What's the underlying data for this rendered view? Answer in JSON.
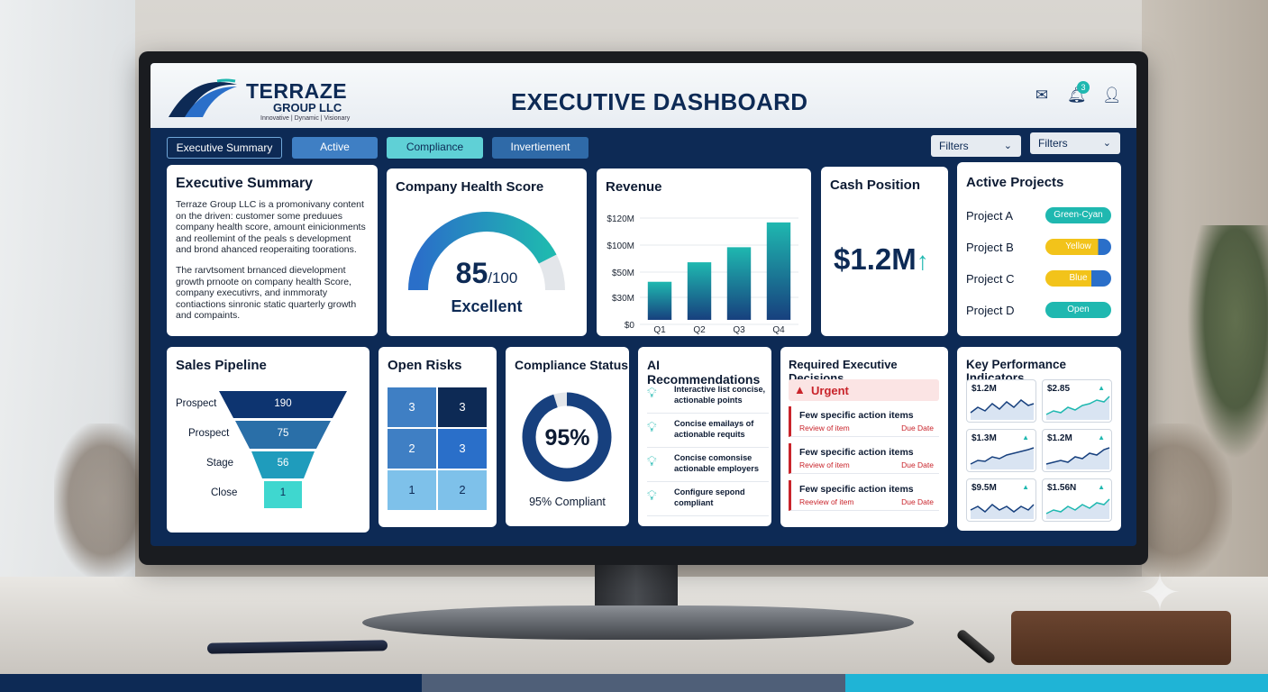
{
  "brand": {
    "name": "TERRAZE",
    "sub": "GROUP LLC",
    "tagline": "Innovative | Dynamic | Visionary"
  },
  "header": {
    "title": "EXECUTIVE DASHBOARD",
    "notification_count": "3"
  },
  "tabs": [
    {
      "label": "Executive Summary"
    },
    {
      "label": "Active"
    },
    {
      "label": "Compliance"
    },
    {
      "label": "Invertiement"
    }
  ],
  "filters": [
    {
      "label": "Filters"
    },
    {
      "label": "Filters"
    }
  ],
  "summary": {
    "title": "Executive Summary",
    "para1": "Terraze Group LLC is a promonivany content on the driven: customer some preduues company health score, amount einicionments and reollemint of the peals s development and brond ahanced reoperaiting toorations.",
    "para2": "The rarvtsoment brnanced dievelopment growth prnoote on company health Score, company executivrs, and inmmoraty contiactions sinronic static quarterly growth and compaints."
  },
  "health": {
    "title": "Company Health Score",
    "score": "85",
    "max": "/100",
    "score_value": 85,
    "rating": "Excellent"
  },
  "revenue": {
    "title": "Revenue"
  },
  "chart_data": {
    "type": "bar",
    "title": "Revenue",
    "categories": [
      "Q1",
      "Q2",
      "Q3",
      "Q4"
    ],
    "values": [
      43,
      65,
      82,
      110
    ],
    "y_ticks": [
      "$0",
      "$30M",
      "$50M",
      "$100M",
      "$120M"
    ],
    "ylim": [
      0,
      120
    ]
  },
  "cash": {
    "title": "Cash Position",
    "value": "$1.2M",
    "trend": "↑"
  },
  "projects": {
    "title": "Active Projects",
    "items": [
      {
        "name": "Project A",
        "status": "Green-Cyan",
        "color": "#1fb8b0",
        "fill": 1.0
      },
      {
        "name": "Project B",
        "status": "Yellow",
        "color": "#2a6fc9",
        "fill": 0.2
      },
      {
        "name": "Project C",
        "status": "Blue",
        "color": "#2a6fc9",
        "fill": 0.3
      },
      {
        "name": "Project D",
        "status": "Open",
        "color": "#1fb8b0",
        "fill": 1.0
      }
    ]
  },
  "pipeline": {
    "title": "Sales Pipeline",
    "stages": [
      {
        "label": "Prospect",
        "value": "190"
      },
      {
        "label": "Prospect",
        "value": "75"
      },
      {
        "label": "Stage",
        "value": "56"
      },
      {
        "label": "Close",
        "value": "1"
      }
    ]
  },
  "risks": {
    "title": "Open Risks",
    "cells": [
      "3",
      "3",
      "2",
      "3",
      "1",
      "2"
    ]
  },
  "compliance": {
    "title": "Compliance Status",
    "value": "95%",
    "percent": 95,
    "caption": "95% Compliant"
  },
  "ai": {
    "title": "AI Recommendations",
    "items": [
      {
        "line1": "Interactive list concise,",
        "line2": "actionable points"
      },
      {
        "line1": "Concise emailays of",
        "line2": "actionable requits"
      },
      {
        "line1": "Concise comonsise",
        "line2": "actionable employers"
      },
      {
        "line1": "Configure sepond",
        "line2": "compliant"
      }
    ]
  },
  "decisions": {
    "title": "Required Executive Decisions",
    "urgent_label": "Urgent",
    "items": [
      {
        "title": "Few specific action items",
        "sub": "Review of item",
        "due": "Due Date"
      },
      {
        "title": "Few specific action items",
        "sub": "Review of item",
        "due": "Due Date"
      },
      {
        "title": "Few specific action items",
        "sub": "Reeview of item",
        "due": "Due Date"
      }
    ]
  },
  "kpi": {
    "title": "Key Performance Indicators",
    "tiles": [
      {
        "value": "$1.2M",
        "trend": ""
      },
      {
        "value": "$2.85",
        "trend": "▲"
      },
      {
        "value": "$1.3M",
        "trend": "▲"
      },
      {
        "value": "$1.2M",
        "trend": "▲"
      },
      {
        "value": "$9.5M",
        "trend": "▲"
      },
      {
        "value": "$1.56N",
        "trend": "▲"
      }
    ]
  },
  "colors": {
    "navy": "#0d2a55",
    "teal": "#1fb8b0",
    "blue": "#2a6fc9",
    "yellow": "#f2c31a",
    "red": "#c9242b"
  }
}
